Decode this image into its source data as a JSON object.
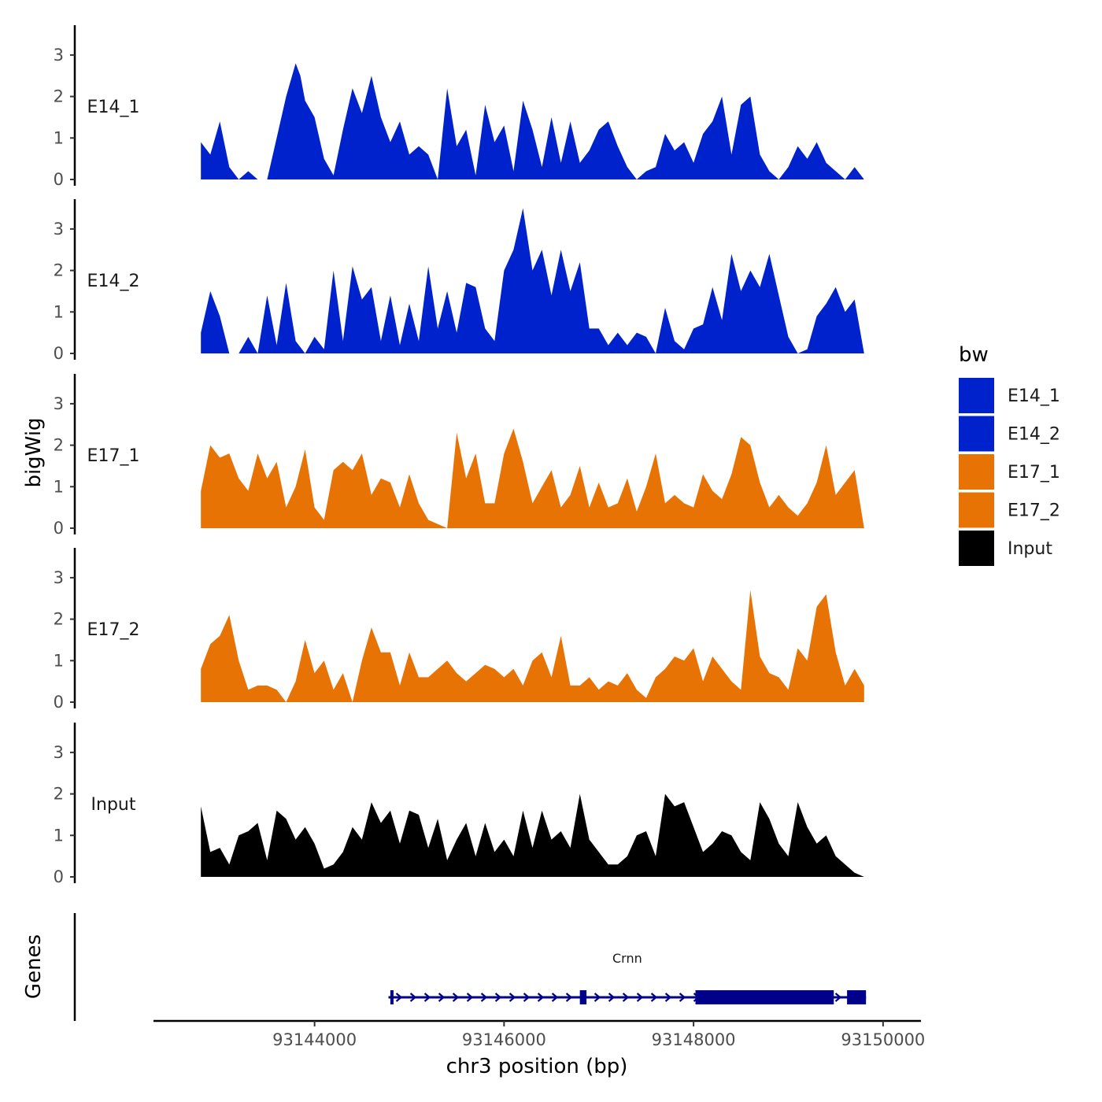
{
  "chart_data": {
    "type": "area",
    "chromosome": "chr3",
    "xlabel": "chr3 position (bp)",
    "ylabel": "bigWig",
    "ylim": [
      0,
      3.7
    ],
    "y_ticks": [
      0,
      1,
      2,
      3
    ],
    "xlim": [
      93142300,
      93150400
    ],
    "x_ticks": [
      93144000,
      93146000,
      93148000,
      93150000
    ],
    "x_tick_labels": [
      "93144000",
      "93146000",
      "93148000",
      "93150000"
    ],
    "legend": {
      "title": "bw",
      "position": "right",
      "entries": [
        {
          "name": "E14_1",
          "color": "#0022cc"
        },
        {
          "name": "E14_2",
          "color": "#0022cc"
        },
        {
          "name": "E17_1",
          "color": "#e87305"
        },
        {
          "name": "E17_2",
          "color": "#e87305"
        },
        {
          "name": "Input",
          "color": "#000000"
        }
      ]
    },
    "series": [
      {
        "name": "E14_1",
        "color": "#0022cc",
        "x": [
          93142800,
          93142900,
          93143000,
          93143100,
          93143200,
          93143300,
          93143400,
          93143500,
          93143600,
          93143700,
          93143800,
          93143850,
          93143900,
          93144000,
          93144100,
          93144200,
          93144300,
          93144400,
          93144500,
          93144600,
          93144700,
          93144800,
          93144900,
          93145000,
          93145100,
          93145200,
          93145300,
          93145400,
          93145500,
          93145600,
          93145700,
          93145800,
          93145900,
          93146000,
          93146100,
          93146200,
          93146300,
          93146400,
          93146500,
          93146600,
          93146700,
          93146800,
          93146900,
          93147000,
          93147100,
          93147200,
          93147300,
          93147400,
          93147500,
          93147600,
          93147700,
          93147800,
          93147900,
          93148000,
          93148100,
          93148200,
          93148300,
          93148400,
          93148500,
          93148600,
          93148700,
          93148800,
          93148900,
          93149000,
          93149100,
          93149200,
          93149300,
          93149400,
          93149500,
          93149600,
          93149700,
          93149800
        ],
        "values": [
          0.9,
          0.6,
          1.4,
          0.3,
          0,
          0.2,
          0,
          0,
          1,
          2,
          2.8,
          2.5,
          1.9,
          1.5,
          0.5,
          0.1,
          1.2,
          2.2,
          1.6,
          2.5,
          1.5,
          0.9,
          1.4,
          0.6,
          0.8,
          0.6,
          0,
          2.2,
          0.8,
          1.2,
          0.1,
          1.8,
          0.9,
          1.3,
          0.2,
          1.9,
          1.2,
          0.3,
          1.5,
          0.4,
          1.4,
          0.4,
          0.7,
          1.2,
          1.4,
          0.8,
          0.3,
          0,
          0.2,
          0.3,
          1.1,
          0.7,
          0.9,
          0.4,
          1.1,
          1.4,
          2.0,
          0.6,
          1.8,
          2.0,
          0.6,
          0.2,
          0,
          0.3,
          0.8,
          0.5,
          0.9,
          0.4,
          0.2,
          0,
          0.3,
          0
        ]
      },
      {
        "name": "E14_2",
        "color": "#0022cc",
        "x": [
          93142800,
          93142900,
          93143000,
          93143100,
          93143200,
          93143300,
          93143400,
          93143500,
          93143600,
          93143700,
          93143800,
          93143900,
          93144000,
          93144100,
          93144200,
          93144300,
          93144400,
          93144500,
          93144600,
          93144700,
          93144800,
          93144900,
          93145000,
          93145100,
          93145200,
          93145300,
          93145400,
          93145500,
          93145600,
          93145700,
          93145800,
          93145900,
          93146000,
          93146100,
          93146200,
          93146300,
          93146400,
          93146500,
          93146600,
          93146700,
          93146800,
          93146900,
          93147000,
          93147100,
          93147200,
          93147300,
          93147400,
          93147500,
          93147600,
          93147700,
          93147800,
          93147900,
          93148000,
          93148100,
          93148200,
          93148300,
          93148400,
          93148500,
          93148600,
          93148700,
          93148800,
          93148900,
          93149000,
          93149100,
          93149200,
          93149300,
          93149400,
          93149500,
          93149600,
          93149700,
          93149800
        ],
        "values": [
          0.5,
          1.5,
          0.9,
          0,
          0,
          0.4,
          0,
          1.4,
          0.2,
          1.7,
          0.3,
          0,
          0.4,
          0.1,
          2.0,
          0.3,
          2.1,
          1.3,
          1.6,
          0.3,
          1.4,
          0.2,
          1.2,
          0.3,
          2.1,
          0.6,
          1.5,
          0.5,
          1.7,
          1.6,
          0.6,
          0.3,
          2.0,
          2.5,
          3.5,
          2.0,
          2.5,
          1.4,
          2.5,
          1.5,
          2.2,
          0.6,
          0.6,
          0.2,
          0.5,
          0.2,
          0.5,
          0.4,
          0,
          1.1,
          0.3,
          0.1,
          0.6,
          0.7,
          1.6,
          0.8,
          2.4,
          1.5,
          2.0,
          1.6,
          2.4,
          1.4,
          0.4,
          0,
          0.1,
          0.9,
          1.2,
          1.6,
          1.0,
          1.3,
          0
        ]
      },
      {
        "name": "E17_1",
        "color": "#e87305",
        "x": [
          93142800,
          93142900,
          93143000,
          93143100,
          93143200,
          93143300,
          93143400,
          93143500,
          93143600,
          93143700,
          93143800,
          93143900,
          93144000,
          93144100,
          93144200,
          93144300,
          93144400,
          93144500,
          93144600,
          93144700,
          93144800,
          93144900,
          93145000,
          93145100,
          93145200,
          93145300,
          93145400,
          93145500,
          93145600,
          93145700,
          93145800,
          93145900,
          93146000,
          93146100,
          93146200,
          93146300,
          93146400,
          93146500,
          93146600,
          93146700,
          93146800,
          93146900,
          93147000,
          93147100,
          93147200,
          93147300,
          93147400,
          93147500,
          93147600,
          93147700,
          93147800,
          93147900,
          93148000,
          93148100,
          93148200,
          93148300,
          93148400,
          93148500,
          93148600,
          93148700,
          93148800,
          93148900,
          93149000,
          93149100,
          93149200,
          93149300,
          93149400,
          93149500,
          93149600,
          93149700,
          93149800
        ],
        "values": [
          0.9,
          2.0,
          1.7,
          1.8,
          1.2,
          0.9,
          1.8,
          1.2,
          1.6,
          0.5,
          1.0,
          1.9,
          0.5,
          0.2,
          1.4,
          1.6,
          1.4,
          1.8,
          0.8,
          1.2,
          1.1,
          0.5,
          1.3,
          0.6,
          0.2,
          0.1,
          0,
          2.3,
          1.2,
          1.8,
          0.6,
          0.6,
          1.8,
          2.4,
          1.6,
          0.6,
          1.0,
          1.4,
          0.5,
          0.8,
          1.5,
          0.5,
          1.1,
          0.5,
          0.6,
          1.2,
          0.4,
          1.0,
          1.8,
          0.6,
          0.8,
          0.6,
          0.5,
          1.3,
          0.9,
          0.7,
          1.3,
          2.2,
          2.0,
          1.1,
          0.5,
          0.8,
          0.5,
          0.3,
          0.6,
          1.1,
          2.0,
          0.8,
          1.1,
          1.4,
          0
        ]
      },
      {
        "name": "E17_2",
        "color": "#e87305",
        "x": [
          93142800,
          93142900,
          93143000,
          93143100,
          93143200,
          93143300,
          93143400,
          93143500,
          93143600,
          93143700,
          93143800,
          93143900,
          93144000,
          93144100,
          93144200,
          93144300,
          93144400,
          93144500,
          93144600,
          93144700,
          93144800,
          93144900,
          93145000,
          93145100,
          93145200,
          93145300,
          93145400,
          93145500,
          93145600,
          93145700,
          93145800,
          93145900,
          93146000,
          93146100,
          93146200,
          93146300,
          93146400,
          93146500,
          93146600,
          93146700,
          93146800,
          93146900,
          93147000,
          93147100,
          93147200,
          93147300,
          93147400,
          93147500,
          93147600,
          93147700,
          93147800,
          93147900,
          93148000,
          93148100,
          93148200,
          93148300,
          93148400,
          93148500,
          93148600,
          93148700,
          93148800,
          93148900,
          93149000,
          93149100,
          93149200,
          93149300,
          93149400,
          93149500,
          93149600,
          93149700,
          93149800
        ],
        "values": [
          0.8,
          1.4,
          1.6,
          2.1,
          1.0,
          0.3,
          0.4,
          0.4,
          0.3,
          0,
          0.5,
          1.5,
          0.7,
          1.0,
          0.3,
          0.7,
          0,
          1.0,
          1.8,
          1.2,
          1.2,
          0.4,
          1.2,
          0.6,
          0.6,
          0.8,
          1.0,
          0.7,
          0.5,
          0.7,
          0.9,
          0.8,
          0.6,
          0.8,
          0.4,
          1.0,
          1.2,
          0.6,
          1.6,
          0.4,
          0.4,
          0.6,
          0.3,
          0.5,
          0.4,
          0.7,
          0.3,
          0.1,
          0.6,
          0.8,
          1.1,
          1.0,
          1.3,
          0.5,
          1.1,
          0.8,
          0.5,
          0.3,
          2.7,
          1.1,
          0.7,
          0.6,
          0.3,
          1.3,
          1.0,
          2.3,
          2.6,
          1.2,
          0.4,
          0.8,
          0.4
        ]
      },
      {
        "name": "Input",
        "color": "#000000",
        "x": [
          93142800,
          93142900,
          93143000,
          93143100,
          93143200,
          93143300,
          93143400,
          93143500,
          93143600,
          93143700,
          93143800,
          93143900,
          93144000,
          93144100,
          93144200,
          93144300,
          93144400,
          93144500,
          93144600,
          93144700,
          93144800,
          93144900,
          93145000,
          93145100,
          93145200,
          93145300,
          93145400,
          93145500,
          93145600,
          93145700,
          93145800,
          93145900,
          93146000,
          93146100,
          93146200,
          93146300,
          93146400,
          93146500,
          93146600,
          93146700,
          93146800,
          93146900,
          93147000,
          93147100,
          93147200,
          93147300,
          93147400,
          93147500,
          93147600,
          93147700,
          93147800,
          93147900,
          93148000,
          93148100,
          93148200,
          93148300,
          93148400,
          93148500,
          93148600,
          93148700,
          93148800,
          93148900,
          93149000,
          93149100,
          93149200,
          93149300,
          93149400,
          93149500,
          93149600,
          93149700,
          93149800
        ],
        "values": [
          1.7,
          0.6,
          0.7,
          0.3,
          1.0,
          1.1,
          1.3,
          0.4,
          1.6,
          1.4,
          0.9,
          1.2,
          0.8,
          0.2,
          0.3,
          0.6,
          1.2,
          0.9,
          1.8,
          1.3,
          1.6,
          0.8,
          1.6,
          1.5,
          0.7,
          1.4,
          0.4,
          0.9,
          1.3,
          0.5,
          1.3,
          0.6,
          0.9,
          0.5,
          1.6,
          0.7,
          1.6,
          0.9,
          1.1,
          0.7,
          2.0,
          0.9,
          0.6,
          0.3,
          0.3,
          0.5,
          1.0,
          1.1,
          0.5,
          2.0,
          1.7,
          1.8,
          1.2,
          0.6,
          0.8,
          1.1,
          1.0,
          0.6,
          0.4,
          1.8,
          1.4,
          0.8,
          0.5,
          1.8,
          1.2,
          0.8,
          1.0,
          0.5,
          0.3,
          0.1,
          0
        ]
      }
    ],
    "gene_track": {
      "title": "Genes",
      "gene": "Crnn",
      "strand": "+",
      "line": [
        93144780,
        93149820
      ],
      "exons": [
        [
          93144800,
          93144830
        ],
        [
          93146800,
          93146870
        ],
        [
          93148020,
          93149480
        ],
        [
          93149620,
          93149820
        ]
      ]
    }
  }
}
